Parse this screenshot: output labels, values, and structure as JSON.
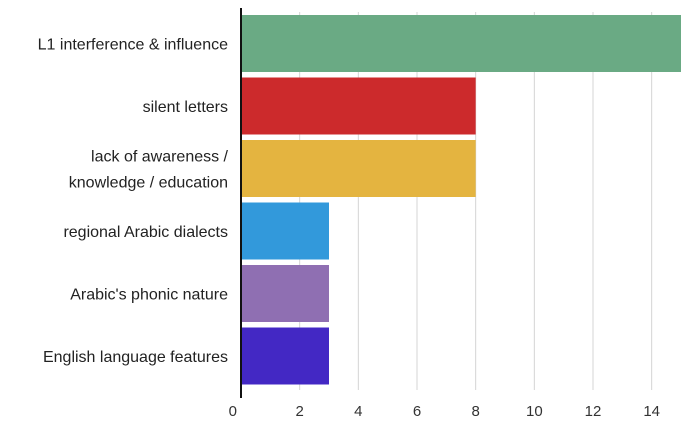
{
  "chart_data": {
    "type": "bar",
    "orientation": "horizontal",
    "categories": [
      [
        "L1 interference & influence"
      ],
      [
        "silent letters"
      ],
      [
        "lack of awareness /",
        "knowledge / education"
      ],
      [
        "regional Arabic dialects"
      ],
      [
        "Arabic's phonic nature"
      ],
      [
        "English language features"
      ]
    ],
    "values": [
      15,
      8,
      8,
      3,
      3,
      3
    ],
    "colors": [
      "#6aaa84",
      "#cc2a2c",
      "#e4b440",
      "#3299db",
      "#8f6fb2",
      "#4328c4"
    ],
    "xlim": [
      0,
      15
    ],
    "xticks": [
      0,
      2,
      4,
      6,
      8,
      10,
      12,
      14
    ],
    "tick_labels": [
      "0",
      "2",
      "4",
      "6",
      "8",
      "10",
      "12",
      "14"
    ],
    "grid": true,
    "title": "",
    "xlabel": "",
    "ylabel": ""
  }
}
